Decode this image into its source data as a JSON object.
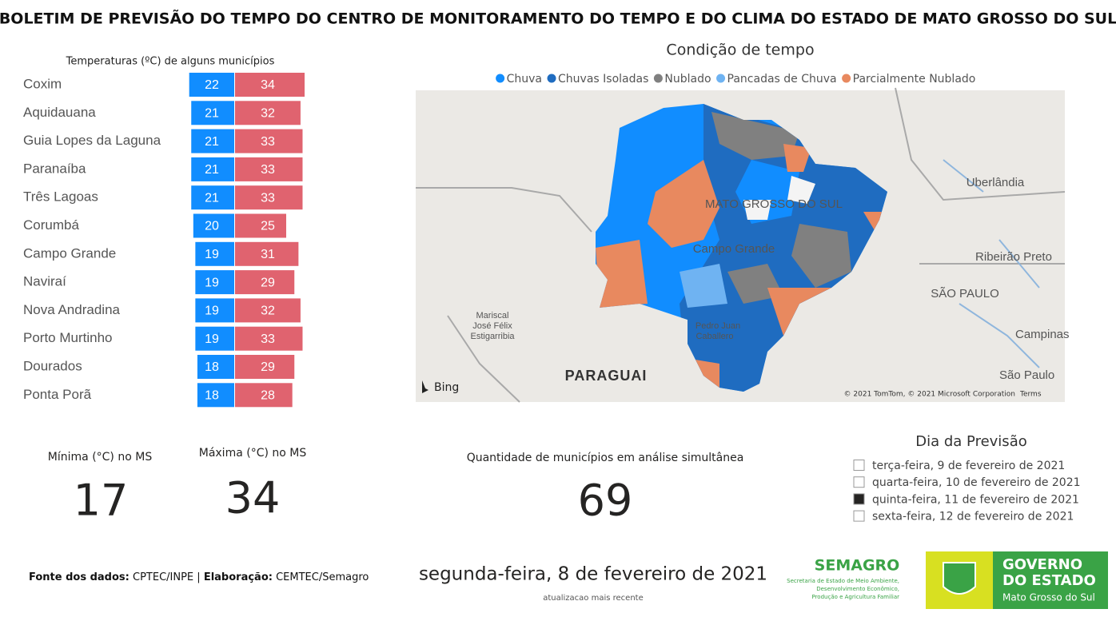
{
  "header": {
    "title": "BOLETIM DE PREVISÃO DO TEMPO DO CENTRO DE MONITORAMENTO DO TEMPO E DO CLIMA DO ESTADO DE MATO GROSSO DO SUL"
  },
  "chart_data": {
    "type": "bar",
    "title": "Temperaturas (ºC) de alguns municípios",
    "categories": [
      "Coxim",
      "Aquidauana",
      "Guia Lopes da Laguna",
      "Paranaíba",
      "Três Lagoas",
      "Corumbá",
      "Campo Grande",
      "Naviraí",
      "Nova Andradina",
      "Porto Murtinho",
      "Dourados",
      "Ponta Porã"
    ],
    "series": [
      {
        "color": "#118dff",
        "values": [
          22,
          21,
          21,
          21,
          21,
          20,
          19,
          19,
          19,
          19,
          18,
          18
        ]
      },
      {
        "color": "#e0636f",
        "values": [
          34,
          32,
          33,
          33,
          33,
          25,
          31,
          29,
          32,
          33,
          29,
          28
        ]
      }
    ]
  },
  "map": {
    "title": "Condição de tempo",
    "legend": [
      {
        "name": "Chuva",
        "color": "#118dff"
      },
      {
        "name": "Chuvas Isoladas",
        "color": "#1f6cc0"
      },
      {
        "name": "Nublado",
        "color": "#808080"
      },
      {
        "name": "Pancadas de Chuva",
        "color": "#6fb3f2"
      },
      {
        "name": "Parcialmente Nublado",
        "color": "#e8895f"
      }
    ],
    "labels": [
      "MATO GROSSO DO SUL",
      "Campo Grande",
      "Pedro Juan",
      "Caballero",
      "Mariscal",
      "José Félix",
      "Estigarribia",
      "PARAGUAI",
      "Uberlândia",
      "Ribeirão Preto",
      "SÃO PAULO",
      "Campinas",
      "São Paulo"
    ],
    "bing": "Bing",
    "attribution": "© 2021 TomTom, © 2021 Microsoft Corporation",
    "terms": "Terms"
  },
  "kpis": [
    {
      "label": "Mínima (°C) no MS",
      "value": 17
    },
    {
      "label": "Máxima (°C) no MS",
      "value": 34
    },
    {
      "label": "Quantidade de municípios em análise simultânea",
      "value": 69
    }
  ],
  "slicer": {
    "title": "Dia da Previsão",
    "options": [
      "terça-feira, 9 de fevereiro de 2021",
      "quarta-feira, 10 de fevereiro de 2021",
      "quinta-feira, 11 de fevereiro de 2021",
      "sexta-feira, 12 de fevereiro de 2021"
    ],
    "selected": 2
  },
  "footer": {
    "source_label": "Fonte dos dados:",
    "source": "CPTEC/INPE",
    "separator": "|",
    "made_label": "Elaboração:",
    "made": "CEMTEC/Semagro",
    "date": "segunda-feira, 8 de fevereiro de 2021",
    "date_caption": "atualizacao mais recente"
  },
  "semagro": {
    "name": "SEMAGRO",
    "subtitle": [
      "Secretaria de Estado de Meio Ambiente,",
      "Desenvolvimento Econômico,",
      "Produção e Agricultura Familiar"
    ]
  },
  "governo": {
    "line1": "GOVERNO",
    "line2": "DO ESTADO",
    "line3": "Mato Grosso do Sul"
  }
}
